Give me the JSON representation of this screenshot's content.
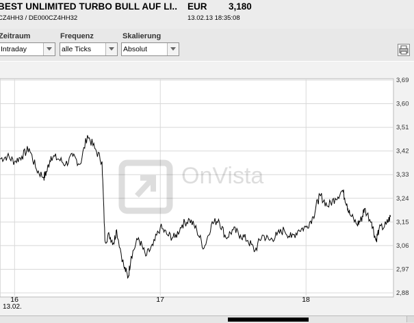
{
  "header": {
    "title": "BEST UNLIMITED TURBO BULL AUF LI..",
    "currency": "EUR",
    "price": "3,180",
    "ids": "CZ4HH3   / DE000CZ4HH32",
    "timestamp": "13.02.13 18:35:08"
  },
  "controls": {
    "zeitraum_label": "Zeitraum",
    "zeitraum_value": "Intraday",
    "frequenz_label": "Frequenz",
    "frequenz_value": "alle Ticks",
    "skalierung_label": "Skalierung",
    "skalierung_value": "Absolut",
    "print_icon": "print-icon"
  },
  "chart": {
    "watermark": "OnVista",
    "date_label": "13.02.",
    "line_color": "#000000",
    "grid_color": "#d8d8d8"
  },
  "chart_data": {
    "type": "line",
    "title": "",
    "xlabel": "",
    "ylabel": "",
    "ylim": [
      2.88,
      3.69
    ],
    "y_ticks": [
      "3,69",
      "3,60",
      "3,51",
      "3,42",
      "3,33",
      "3,24",
      "3,15",
      "3,06",
      "2,97",
      "2,88"
    ],
    "x_ticks": [
      "16",
      "17",
      "18"
    ],
    "x_range_hours": [
      15.9,
      18.6
    ],
    "grid": true,
    "series": [
      {
        "x": [
          15.9,
          15.95,
          16.0,
          16.05,
          16.1,
          16.15,
          16.2,
          16.22,
          16.25,
          16.3,
          16.35,
          16.4,
          16.45,
          16.5,
          16.55,
          16.6,
          16.62,
          16.65,
          16.68,
          16.7,
          16.75,
          16.78,
          16.8,
          16.85,
          16.9,
          16.95,
          17.0,
          17.05,
          17.1,
          17.15,
          17.2,
          17.25,
          17.3,
          17.35,
          17.4,
          17.45,
          17.5,
          17.55,
          17.6,
          17.65,
          17.7,
          17.75,
          17.8,
          17.85,
          17.9,
          17.95,
          18.0,
          18.05,
          18.08,
          18.1,
          18.15,
          18.2,
          18.25,
          18.28,
          18.3,
          18.35,
          18.38,
          18.4,
          18.45,
          18.48,
          18.5,
          18.55,
          18.58
        ],
        "y": [
          3.39,
          3.4,
          3.38,
          3.4,
          3.43,
          3.35,
          3.32,
          3.34,
          3.4,
          3.39,
          3.37,
          3.4,
          3.37,
          3.48,
          3.43,
          3.38,
          3.08,
          3.1,
          3.07,
          3.12,
          2.98,
          2.94,
          3.02,
          3.09,
          3.02,
          3.06,
          3.13,
          3.1,
          3.09,
          3.14,
          3.16,
          3.12,
          3.05,
          3.14,
          3.16,
          3.09,
          3.12,
          3.1,
          3.08,
          3.04,
          3.1,
          3.08,
          3.1,
          3.12,
          3.09,
          3.12,
          3.13,
          3.17,
          3.23,
          3.25,
          3.21,
          3.24,
          3.27,
          3.22,
          3.18,
          3.14,
          3.16,
          3.2,
          3.15,
          3.08,
          3.12,
          3.14,
          3.17
        ]
      }
    ]
  },
  "scrollbar": {
    "thumb": ""
  }
}
